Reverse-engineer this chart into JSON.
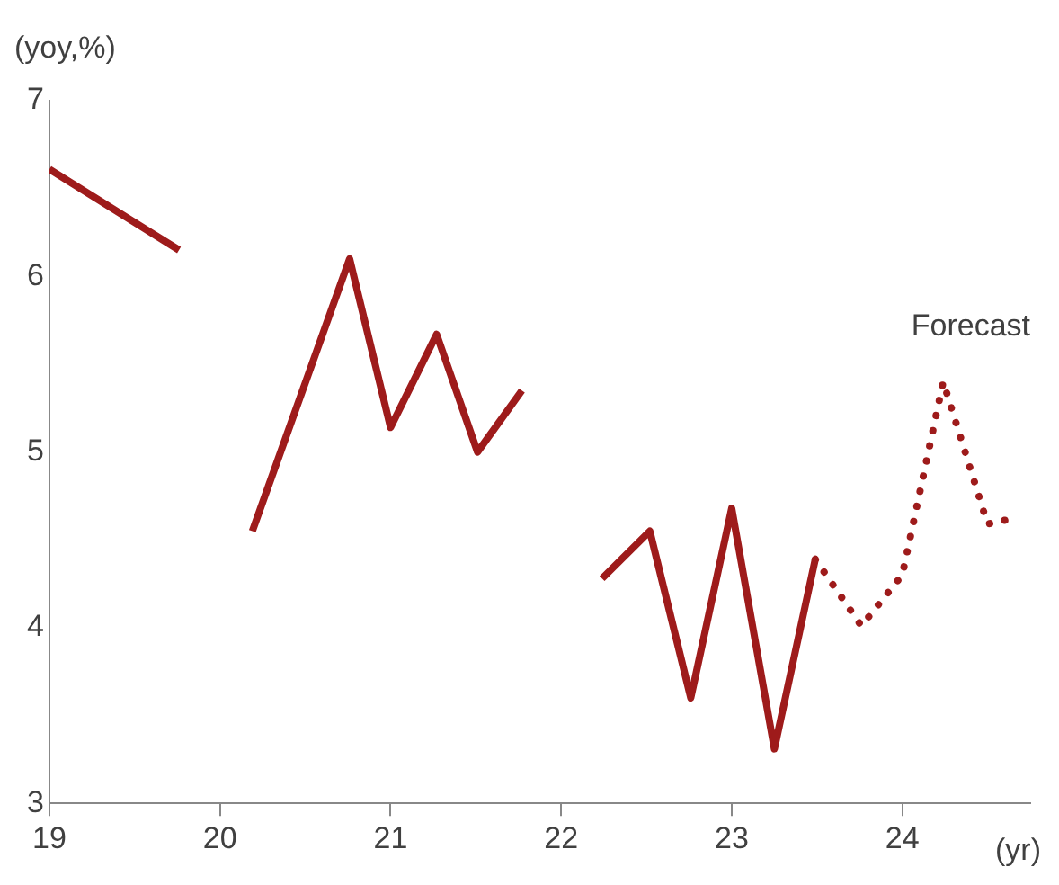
{
  "chart_data": {
    "type": "line",
    "xlabel": "(yr)",
    "ylabel": "(yoy,%)",
    "xlim": [
      19,
      24.75
    ],
    "xticks": [
      19,
      20,
      21,
      22,
      23,
      24
    ],
    "ylim": [
      3,
      7
    ],
    "yticks": [
      3,
      4,
      5,
      6,
      7
    ],
    "grid": false,
    "legend": false,
    "marker": "none",
    "annotations": [
      "Forecast"
    ],
    "series": [
      {
        "color": "#9e1b1b",
        "line_style": "solid",
        "x": [
          19.0,
          19.76,
          20.04,
          20.19,
          20.76,
          21.0,
          21.27,
          21.51,
          21.77,
          22.0,
          22.24,
          22.52,
          22.76,
          23.0,
          23.25,
          23.49
        ],
        "values": [
          6.61,
          6.15,
          null,
          4.55,
          6.1,
          5.14,
          5.67,
          5.0,
          5.35,
          null,
          4.28,
          4.55,
          3.6,
          4.68,
          3.31,
          4.39
        ]
      },
      {
        "color": "#9e1b1b",
        "line_style": "dotted",
        "x": [
          23.49,
          23.76,
          24.0,
          24.24,
          24.5,
          24.64
        ],
        "values": [
          4.39,
          4.01,
          4.3,
          5.4,
          4.59,
          4.62
        ]
      }
    ]
  }
}
